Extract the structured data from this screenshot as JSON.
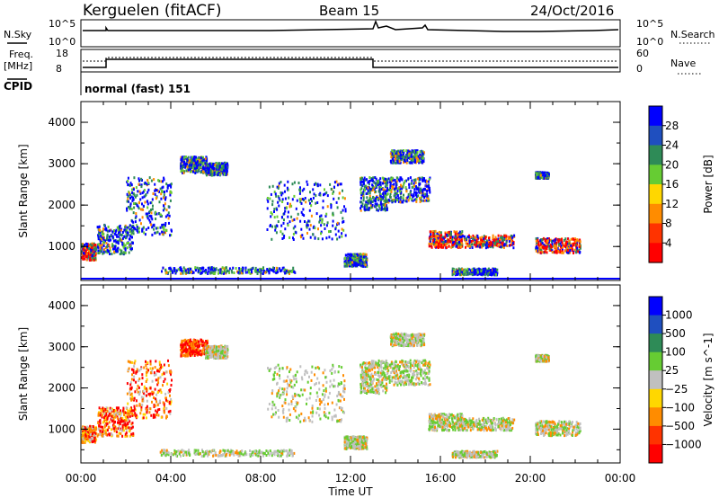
{
  "header": {
    "station": "Kerguelen (fitACF)",
    "beam": "Beam 15",
    "date": "24/Oct/2016"
  },
  "nsky_panel": {
    "left_label": "N.Sky",
    "right_label": "N.Search",
    "left_ticks": [
      "10^5",
      "10^0"
    ],
    "right_ticks": [
      "10^5",
      "10^0"
    ]
  },
  "freq_panel": {
    "left_label_line1": "Freq.",
    "left_label_line2": "[MHz]",
    "right_label": "Nave",
    "left_ticks": [
      "18",
      "8"
    ],
    "right_ticks": [
      "60",
      "0"
    ],
    "cpid_label": "CPID",
    "cpid_text": "normal (fast) 151"
  },
  "colors": {
    "blue": "#0000ff",
    "dkgreen": "#2e8b57",
    "green": "#66cc33",
    "yellow": "#ffd700",
    "orange": "#ff8c00",
    "red": "#ff0000",
    "grey": "#c0c0c0"
  },
  "chart_data": [
    {
      "type": "heatmap",
      "title": "Power",
      "xlabel": "Time UT",
      "ylabel": "Slant Range [km]",
      "xlim": [
        "00:00",
        "24:00"
      ],
      "x_ticks": [
        "00:00",
        "04:00",
        "08:00",
        "12:00",
        "16:00",
        "20:00",
        "00:00"
      ],
      "ylim": [
        180,
        4500
      ],
      "y_ticks": [
        1000,
        2000,
        3000,
        4000
      ],
      "colorbar": {
        "label": "Power [dB]",
        "ticks": [
          "4",
          "8",
          "12",
          "16",
          "20",
          "24",
          "28"
        ],
        "colors": [
          "#0000ff",
          "#1f4fbf",
          "#2e8b57",
          "#66cc33",
          "#ffd700",
          "#ff8c00",
          "#ff3300",
          "#ff0000"
        ]
      }
    },
    {
      "type": "heatmap",
      "title": "Velocity",
      "xlabel": "Time UT",
      "ylabel": "Slant Range [km]",
      "xlim": [
        "00:00",
        "24:00"
      ],
      "x_ticks": [
        "00:00",
        "04:00",
        "08:00",
        "12:00",
        "16:00",
        "20:00",
        "00:00"
      ],
      "ylim": [
        180,
        4500
      ],
      "y_ticks": [
        1000,
        2000,
        3000,
        4000
      ],
      "colorbar": {
        "label": "Velocity [m s^-1]",
        "ticks": [
          "1000",
          "500",
          "100",
          "25",
          "−25",
          "−100",
          "−500",
          "−1000"
        ],
        "colors": [
          "#0000ff",
          "#1f4fbf",
          "#2e8b57",
          "#66cc33",
          "#c0c0c0",
          "#ffd700",
          "#ff8c00",
          "#ff3300",
          "#ff0000"
        ]
      }
    }
  ]
}
